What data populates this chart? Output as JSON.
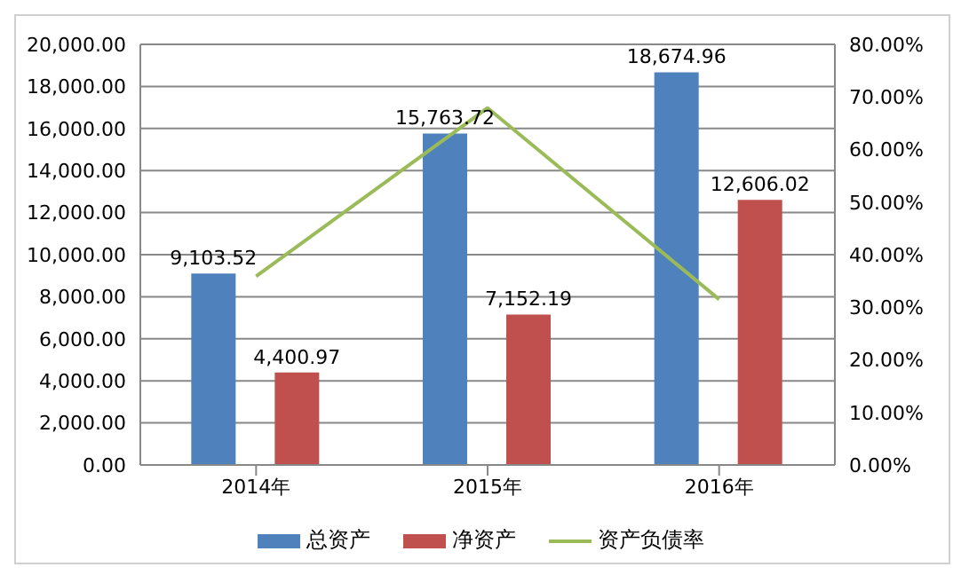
{
  "chart_data": {
    "type": "bar",
    "categories": [
      "2014年",
      "2015年",
      "2016年"
    ],
    "series": [
      {
        "name": "总资产",
        "color": "#4f81bd",
        "values": [
          9103.52,
          15763.72,
          18674.96
        ],
        "value_labels": [
          "9,103.52",
          "15,763.72",
          "18,674.96"
        ]
      },
      {
        "name": "净资产",
        "color": "#c0504d",
        "values": [
          4400.97,
          7152.19,
          12606.02
        ],
        "value_labels": [
          "4,400.97",
          "7,152.19",
          "12,606.02"
        ]
      },
      {
        "name": "资产负债率",
        "type": "line",
        "axis": "y2",
        "color": "#9bbb59",
        "values": [
          35.9,
          67.9,
          31.5
        ]
      }
    ],
    "ylim": [
      0,
      20000
    ],
    "yticks": [
      {
        "value": 0,
        "label": "0.00"
      },
      {
        "value": 2000,
        "label": "2,000.00"
      },
      {
        "value": 4000,
        "label": "4,000.00"
      },
      {
        "value": 6000,
        "label": "6,000.00"
      },
      {
        "value": 8000,
        "label": "8,000.00"
      },
      {
        "value": 10000,
        "label": "10,000.00"
      },
      {
        "value": 12000,
        "label": "12,000.00"
      },
      {
        "value": 14000,
        "label": "14,000.00"
      },
      {
        "value": 16000,
        "label": "16,000.00"
      },
      {
        "value": 18000,
        "label": "18,000.00"
      },
      {
        "value": 20000,
        "label": "20,000.00"
      }
    ],
    "y2lim": [
      0,
      80
    ],
    "y2ticks": [
      {
        "value": 0,
        "label": "0.00%"
      },
      {
        "value": 10,
        "label": "10.00%"
      },
      {
        "value": 20,
        "label": "20.00%"
      },
      {
        "value": 30,
        "label": "30.00%"
      },
      {
        "value": 40,
        "label": "40.00%"
      },
      {
        "value": 50,
        "label": "50.00%"
      },
      {
        "value": 60,
        "label": "60.00%"
      },
      {
        "value": 70,
        "label": "70.00%"
      },
      {
        "value": 80,
        "label": "80.00%"
      }
    ],
    "grid": "y",
    "legend": "bottom",
    "marker": "none"
  }
}
